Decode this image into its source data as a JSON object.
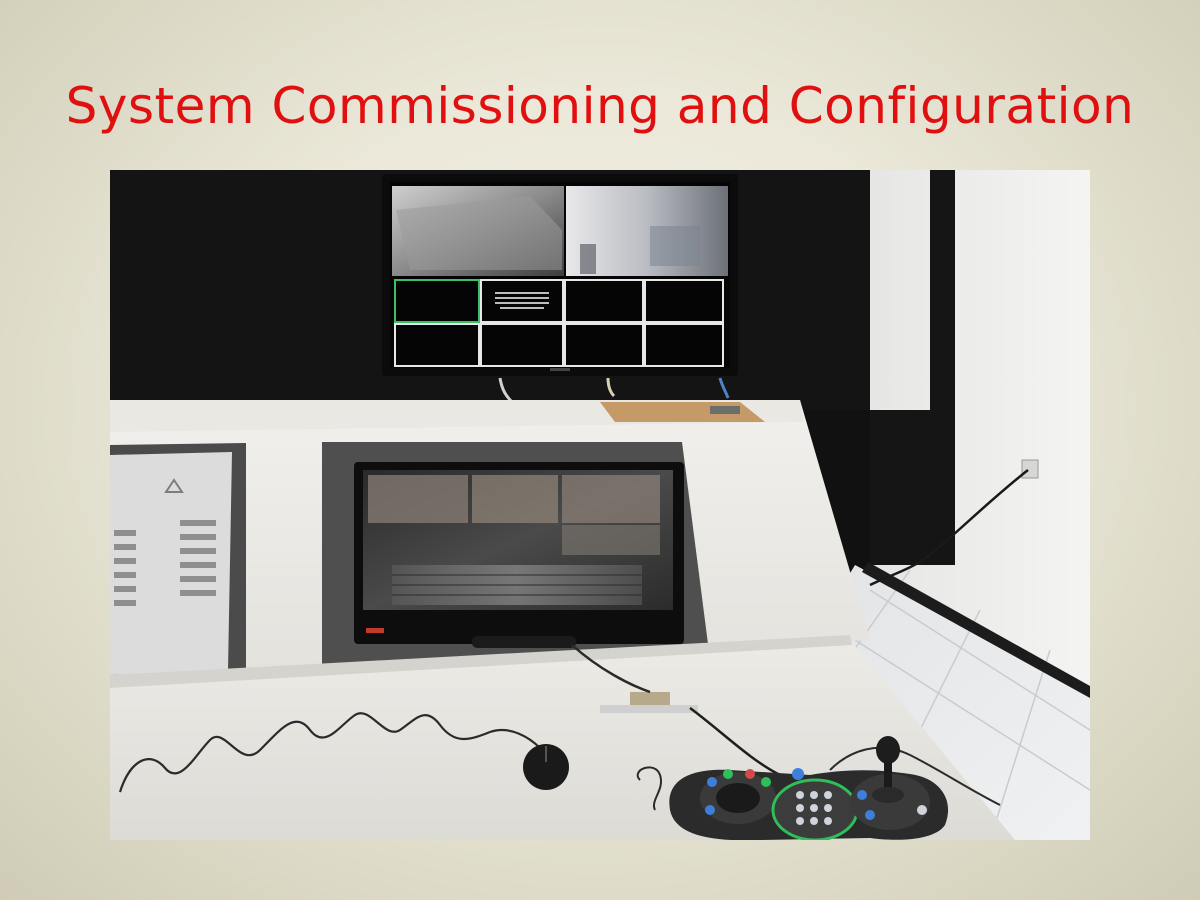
{
  "slide": {
    "title": "System Commissioning and Configuration",
    "title_color": "#e01010"
  },
  "photo": {
    "subject": "control desk photo"
  },
  "colors": {
    "background": "#ebe8d9",
    "wall_dark": "#121212",
    "desk": "#e9e8e3",
    "bezel": "#4a4a4a",
    "joystick_green": "#2fbf5a",
    "joystick_blue": "#3f7fdc"
  }
}
